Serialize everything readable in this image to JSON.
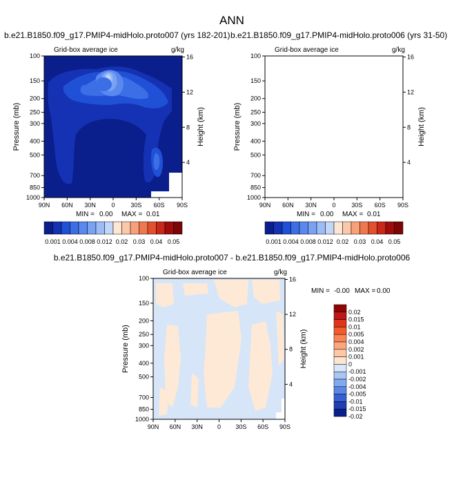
{
  "figure": {
    "title": "ANN"
  },
  "chart_data": [
    {
      "type": "heatmap",
      "title": "b.e21.B1850.f09_g17.PMIP4-midHolo.proto007 (yrs 182-201)",
      "subtitle_left": "Grid-box average ice",
      "subtitle_right": "g/kg",
      "xlabel": "",
      "ylabel": "Pressure (mb)",
      "ylabel_right": "Height (km)",
      "x_ticks": [
        "90N",
        "60N",
        "30N",
        "0",
        "30S",
        "60S",
        "90S"
      ],
      "y_ticks": [
        "100",
        "150",
        "200",
        "250",
        "300",
        "400",
        "500",
        "700",
        "850",
        "1000"
      ],
      "y_right_ticks": [
        "16",
        "12",
        "8",
        "4"
      ],
      "min_label": "MIN =",
      "min_value": "0.00",
      "max_label": "MAX =",
      "max_value": "0.01",
      "colorbar_labels": [
        "0.001",
        "0.004",
        "0.008",
        "0.012",
        "0.02",
        "0.03",
        "0.04",
        "0.05"
      ]
    },
    {
      "type": "heatmap",
      "title": "b.e21.B1850.f09_g17.PMIP4-midHolo.proto006 (yrs 31-50)",
      "subtitle_left": "Grid-box average ice",
      "subtitle_right": "g/kg",
      "xlabel": "",
      "ylabel": "Pressure (mb)",
      "ylabel_right": "Height (km)",
      "x_ticks": [
        "90N",
        "60N",
        "30N",
        "0",
        "30S",
        "60S",
        "90S"
      ],
      "y_ticks": [
        "100",
        "150",
        "200",
        "250",
        "300",
        "400",
        "500",
        "700",
        "850",
        "1000"
      ],
      "y_right_ticks": [
        "16",
        "12",
        "8",
        "4"
      ],
      "min_label": "MIN =",
      "min_value": "0.00",
      "max_label": "MAX =",
      "max_value": "0.01",
      "colorbar_labels": [
        "0.001",
        "0.004",
        "0.008",
        "0.012",
        "0.02",
        "0.03",
        "0.04",
        "0.05"
      ]
    },
    {
      "type": "heatmap",
      "title": "b.e21.B1850.f09_g17.PMIP4-midHolo.proto007 - b.e21.B1850.f09_g17.PMIP4-midHolo.proto006",
      "subtitle_left": "Grid-box average ice",
      "subtitle_right": "g/kg",
      "xlabel": "",
      "ylabel": "Pressure (mb)",
      "ylabel_right": "Height (km)",
      "x_ticks": [
        "90N",
        "60N",
        "30N",
        "0",
        "30S",
        "60S",
        "90S"
      ],
      "y_ticks": [
        "100",
        "150",
        "200",
        "250",
        "300",
        "400",
        "500",
        "700",
        "850",
        "1000"
      ],
      "y_right_ticks": [
        "16",
        "12",
        "8",
        "4"
      ],
      "min_label": "MIN =",
      "min_value": "-0.00",
      "max_label": "MAX =",
      "max_value": "0.00",
      "colorbar_labels": [
        "0.02",
        "0.015",
        "0.01",
        "0.005",
        "0.004",
        "0.002",
        "0.001",
        "0",
        "-0.001",
        "-0.002",
        "-0.004",
        "-0.005",
        "-0.01",
        "-0.015",
        "-0.02"
      ]
    }
  ],
  "colors": {
    "abs_scale": [
      "#0a1e8c",
      "#1532b4",
      "#2050d6",
      "#3c6ee6",
      "#5a88ee",
      "#7aa2f2",
      "#9cbcf6",
      "#c2d6fa",
      "#ffe6d2",
      "#fcc8aa",
      "#f8a07a",
      "#f07850",
      "#e2502e",
      "#c8281a",
      "#a00c0c",
      "#7a0606"
    ],
    "diff_scale": [
      "#900404",
      "#c01616",
      "#e0341c",
      "#f45a2e",
      "#fa8456",
      "#fca67e",
      "#fdc8a6",
      "#fde6d0",
      "#d8e8fa",
      "#a8c6f4",
      "#82a8ee",
      "#5c86e4",
      "#3860d4",
      "#1e3eb4",
      "#0a1f8a"
    ],
    "diff_pos": "#fde9d6",
    "diff_neg": "#d6e6f8"
  }
}
